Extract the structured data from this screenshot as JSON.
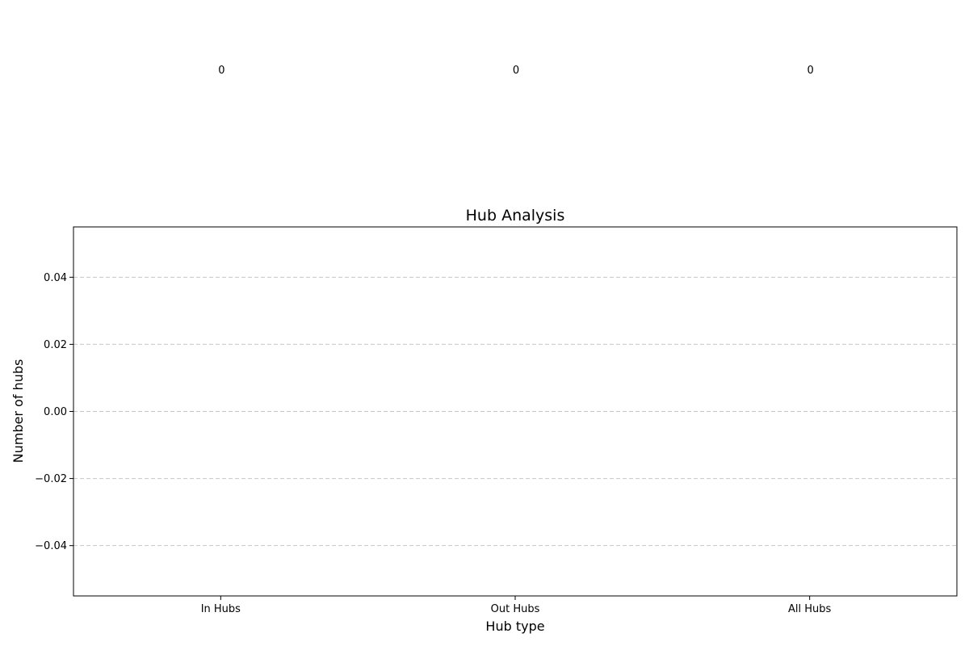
{
  "chart_data": {
    "type": "bar",
    "title": "Hub Analysis",
    "xlabel": "Hub type",
    "ylabel": "Number of hubs",
    "categories": [
      "In Hubs",
      "Out Hubs",
      "All Hubs"
    ],
    "values": [
      0,
      0,
      0
    ],
    "data_labels": [
      "0",
      "0",
      "0"
    ],
    "ylim": [
      -0.055,
      0.055
    ],
    "yticks": [
      0.04,
      0.02,
      0.0,
      -0.02,
      -0.04
    ],
    "ytick_labels": [
      "0.04",
      "0.02",
      "0.00",
      "−0.02",
      "−0.04"
    ],
    "grid": "y-dashed",
    "bar_color": "#1f77b4"
  }
}
